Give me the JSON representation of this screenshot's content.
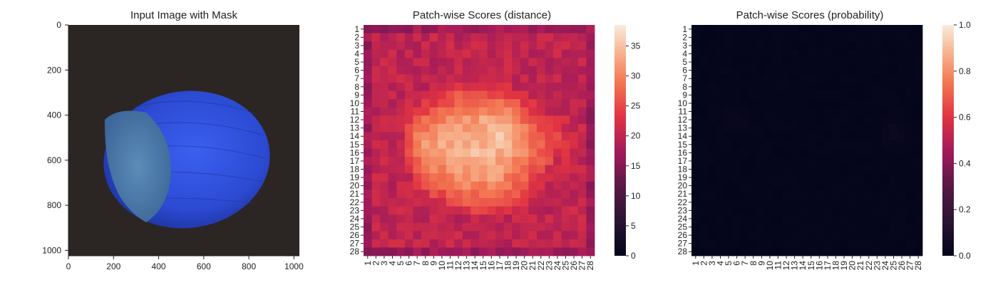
{
  "chart_data": [
    {
      "type": "image",
      "title": "Input Image with Mask",
      "xticks": [
        "0",
        "200",
        "400",
        "600",
        "800",
        "1000"
      ],
      "yticks": [
        "0",
        "200",
        "400",
        "600",
        "800",
        "1000"
      ],
      "xlim": [
        0,
        1024
      ],
      "ylim": [
        1024,
        0
      ],
      "image_description_colors": {
        "background": "#2b2524",
        "shell": "#2f4ed8",
        "cut_face": "#4f7fae"
      }
    },
    {
      "type": "heatmap",
      "title": "Patch-wise Scores (distance)",
      "xticks": [
        "1",
        "2",
        "3",
        "4",
        "5",
        "6",
        "7",
        "8",
        "9",
        "10",
        "11",
        "12",
        "13",
        "14",
        "15",
        "16",
        "17",
        "18",
        "19",
        "20",
        "21",
        "22",
        "23",
        "24",
        "25",
        "26",
        "27",
        "28"
      ],
      "yticks": [
        "1",
        "2",
        "3",
        "4",
        "5",
        "6",
        "7",
        "8",
        "9",
        "10",
        "11",
        "12",
        "13",
        "14",
        "15",
        "16",
        "17",
        "18",
        "19",
        "20",
        "21",
        "22",
        "23",
        "24",
        "25",
        "26",
        "27",
        "28"
      ],
      "colorbar_ticks": [
        "0",
        "5",
        "10",
        "15",
        "20",
        "25",
        "30",
        "35"
      ],
      "vmin": 0,
      "vmax": 38.5,
      "cmap": "rocket",
      "grid_size": [
        28,
        28
      ]
    },
    {
      "type": "heatmap",
      "title": "Patch-wise Scores (probability)",
      "xticks": [
        "1",
        "2",
        "3",
        "4",
        "5",
        "6",
        "7",
        "8",
        "9",
        "10",
        "11",
        "12",
        "13",
        "14",
        "15",
        "16",
        "17",
        "18",
        "19",
        "20",
        "21",
        "22",
        "23",
        "24",
        "25",
        "26",
        "27",
        "28"
      ],
      "yticks": [
        "1",
        "2",
        "3",
        "4",
        "5",
        "6",
        "7",
        "8",
        "9",
        "10",
        "11",
        "12",
        "13",
        "14",
        "15",
        "16",
        "17",
        "18",
        "19",
        "20",
        "21",
        "22",
        "23",
        "24",
        "25",
        "26",
        "27",
        "28"
      ],
      "colorbar_ticks": [
        "0.0",
        "0.2",
        "0.4",
        "0.6",
        "0.8",
        "1.0"
      ],
      "vmin": 0,
      "vmax": 1,
      "cmap": "rocket",
      "grid_size": [
        28,
        28
      ]
    }
  ]
}
